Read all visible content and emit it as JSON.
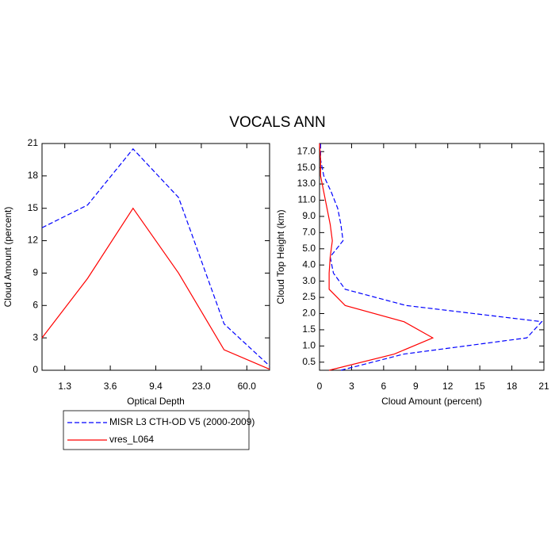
{
  "title": "VOCALS ANN",
  "chart_data": [
    {
      "type": "line",
      "orientation": "vertical",
      "xlabel": "Optical Depth",
      "ylabel": "Cloud Amount (percent)",
      "x": [
        0,
        1,
        2,
        3,
        4,
        5
      ],
      "xlim": [
        0,
        5
      ],
      "xticks": [
        {
          "value": 0.5,
          "label": "1.3"
        },
        {
          "value": 1.5,
          "label": "3.6"
        },
        {
          "value": 2.5,
          "label": "9.4"
        },
        {
          "value": 3.5,
          "label": "23.0"
        },
        {
          "value": 4.5,
          "label": "60.0"
        }
      ],
      "ylim": [
        0,
        21
      ],
      "yticks": [
        0,
        3,
        6,
        9,
        12,
        15,
        18,
        21
      ],
      "legend": "below",
      "series": [
        {
          "name": "MISR L3 CTH-OD V5 (2000-2009)",
          "color": "#0000ff",
          "dashed": true,
          "values": [
            13.2,
            15.3,
            20.5,
            16.0,
            4.3,
            0.4
          ]
        },
        {
          "name": "vres_L064",
          "color": "#ff0000",
          "dashed": false,
          "values": [
            3.0,
            8.5,
            15.0,
            9.0,
            1.9,
            0.1
          ]
        }
      ]
    },
    {
      "type": "line",
      "orientation": "horizontal",
      "xlabel": "Cloud Amount (percent)",
      "ylabel": "Cloud Top Height (km)",
      "y": [
        0,
        1,
        2,
        3,
        4,
        5,
        6,
        7,
        8,
        9,
        10,
        11,
        12,
        13,
        14
      ],
      "ylim": [
        0,
        14
      ],
      "yticks": [
        {
          "value": 0.5,
          "label": "0.5"
        },
        {
          "value": 1.5,
          "label": "1.0"
        },
        {
          "value": 2.5,
          "label": "1.5"
        },
        {
          "value": 3.5,
          "label": "2.0"
        },
        {
          "value": 4.5,
          "label": "2.5"
        },
        {
          "value": 5.5,
          "label": "3.0"
        },
        {
          "value": 6.5,
          "label": "4.0"
        },
        {
          "value": 7.5,
          "label": "5.0"
        },
        {
          "value": 8.5,
          "label": "7.0"
        },
        {
          "value": 9.5,
          "label": "9.0"
        },
        {
          "value": 10.5,
          "label": "11.0"
        },
        {
          "value": 11.5,
          "label": "13.0"
        },
        {
          "value": 12.5,
          "label": "15.0"
        },
        {
          "value": 13.5,
          "label": "17.0"
        }
      ],
      "xlim": [
        0,
        21
      ],
      "xticks": [
        0,
        3,
        6,
        9,
        12,
        15,
        18,
        21
      ],
      "series": [
        {
          "color": "#0000ff",
          "dashed": true,
          "values": [
            2.0,
            7.9,
            19.4,
            20.8,
            8.1,
            2.4,
            1.3,
            1.0,
            2.2,
            2.0,
            1.7,
            1.1,
            0.4,
            0.1,
            0.1
          ]
        },
        {
          "color": "#ff0000",
          "dashed": false,
          "values": [
            0.9,
            7.0,
            10.6,
            7.9,
            2.4,
            0.9,
            0.9,
            1.0,
            1.2,
            1.0,
            0.7,
            0.4,
            0.1,
            0.1,
            0.0
          ]
        }
      ]
    }
  ]
}
